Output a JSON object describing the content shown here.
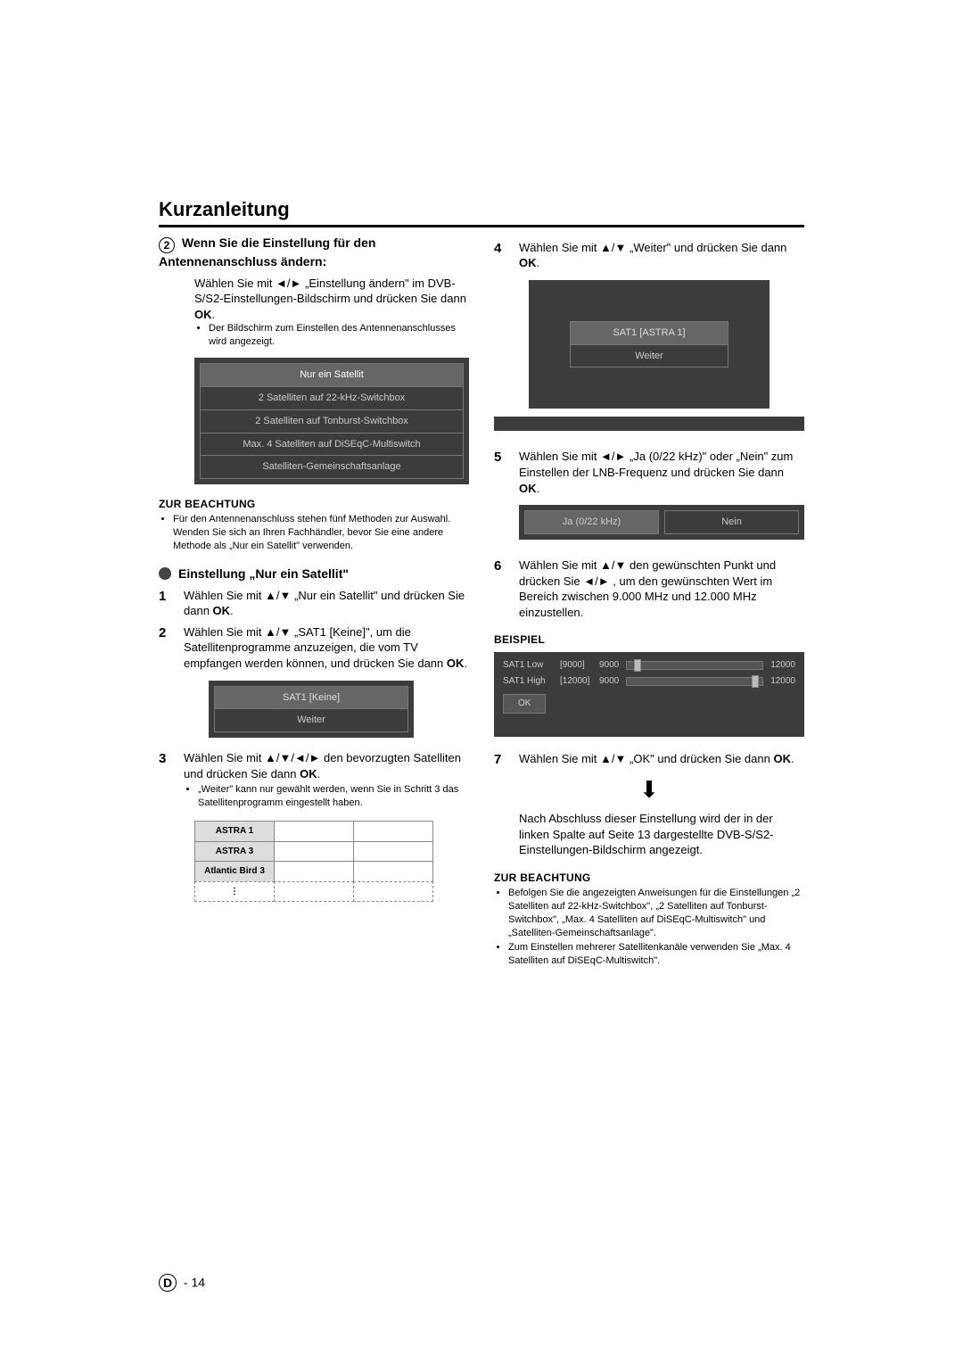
{
  "title": "Kurzanleitung",
  "page_label_letter": "D",
  "page_number": "14",
  "left": {
    "circled_number": "2",
    "heading": "Wenn Sie die Einstellung für den Antennenanschluss ändern:",
    "intro_parts": [
      "Wählen Sie mit ",
      " „Einstellung ändern\" im DVB-S/S2-Einstellungen-Bildschirm und drücken Sie dann ",
      "."
    ],
    "intro_ok": "OK",
    "intro_note": "Der Bildschirm zum Einstellen des Antennenanschlusses wird angezeigt.",
    "menu_options": [
      "Nur ein Satellit",
      "2 Satelliten auf 22-kHz-Switchbox",
      "2 Satelliten auf Tonburst-Switchbox",
      "Max. 4 Satelliten auf DiSEqC-Multiswitch",
      "Satelliten-Gemeinschaftsanlage"
    ],
    "menu_selected": 0,
    "zur_beachtung": "ZUR BEACHTUNG",
    "zur_beachtung_note": "Für den Antennenanschluss stehen fünf Methoden zur Auswahl. Wenden Sie sich an Ihren Fachhändler, bevor Sie eine andere Methode als „Nur ein Satellit\" verwenden.",
    "dot_heading": "Einstellung „Nur ein Satellit\"",
    "step1": {
      "n": "1",
      "pre": "Wählen Sie mit ",
      "post": " „Nur ein Satellit\" und drücken Sie dann ",
      "ok": "OK"
    },
    "step2": {
      "n": "2",
      "pre": "Wählen Sie mit ",
      "mid": " „SAT1 [Keine]\", um die Satellitenprogramme anzuzeigen, die vom TV empfangen werden können, und drücken Sie dann ",
      "ok": "OK"
    },
    "box2_rows": [
      "SAT1 [Keine]",
      "Weiter"
    ],
    "step3": {
      "n": "3",
      "pre": "Wählen Sie mit ",
      "post": " den bevorzugten Satelliten und drücken Sie dann ",
      "ok": "OK",
      "note": "„Weiter\" kann nur gewählt werden, wenn Sie in Schritt 3 das Satellitenprogramm eingestellt haben."
    },
    "sat_rows": [
      "ASTRA 1",
      "ASTRA 3",
      "Atlantic Bird 3"
    ]
  },
  "right": {
    "step4": {
      "n": "4",
      "pre": "Wählen Sie mit ",
      "post": " „Weiter\" und drücken Sie dann ",
      "ok": "OK"
    },
    "box4_rows": [
      "SAT1 [ASTRA 1]",
      "Weiter"
    ],
    "step5": {
      "n": "5",
      "pre": "Wählen Sie mit ",
      "post": " „Ja (0/22 kHz)\" oder „Nein\" zum Einstellen der LNB-Frequenz und drücken Sie dann ",
      "ok": "OK"
    },
    "yn": {
      "yes": "Ja (0/22 kHz)",
      "no": "Nein"
    },
    "step6": {
      "n": "6",
      "pre": "Wählen Sie mit ",
      "mid": " den gewünschten Punkt und drücken Sie ",
      "post": " , um den gewünschten Wert im Bereich zwischen 9.000 MHz und 12.000 MHz einzustellen."
    },
    "beispiel": "BEISPIEL",
    "slider_rows": [
      {
        "label": "SAT1 Low",
        "bracket": "[9000]",
        "min": "9000",
        "max": "12000",
        "knob_pct": 5
      },
      {
        "label": "SAT1 High",
        "bracket": "[12000]",
        "min": "9000",
        "max": "12000",
        "knob_pct": 92
      }
    ],
    "ok_btn": "OK",
    "step7": {
      "n": "7",
      "pre": "Wählen Sie mit ",
      "post": " „OK\" und drücken Sie dann ",
      "ok": "OK"
    },
    "after_arrow": "Nach Abschluss dieser Einstellung wird der in der linken Spalte auf Seite 13 dargestellte DVB-S/S2-Einstellungen-Bildschirm angezeigt.",
    "zur_beachtung": "ZUR BEACHTUNG",
    "notes": [
      "Befolgen Sie die angezeigten Anweisungen für die Einstellungen „2 Satelliten auf 22-kHz-Switchbox\", „2 Satelliten auf Tonburst-Switchbox\", „Max. 4 Satelliten auf DiSEqC-Multiswitch\" und „Satelliten-Gemeinschaftsanlage\".",
      "Zum Einstellen mehrerer Satellitenkanäle verwenden Sie „Max. 4 Satelliten auf DiSEqC-Multiswitch\"."
    ]
  },
  "colors": {
    "menu_bg": "#3c3c3c",
    "menu_row": "#555555",
    "menu_sel": "#666666",
    "text_light": "#cccccc"
  }
}
